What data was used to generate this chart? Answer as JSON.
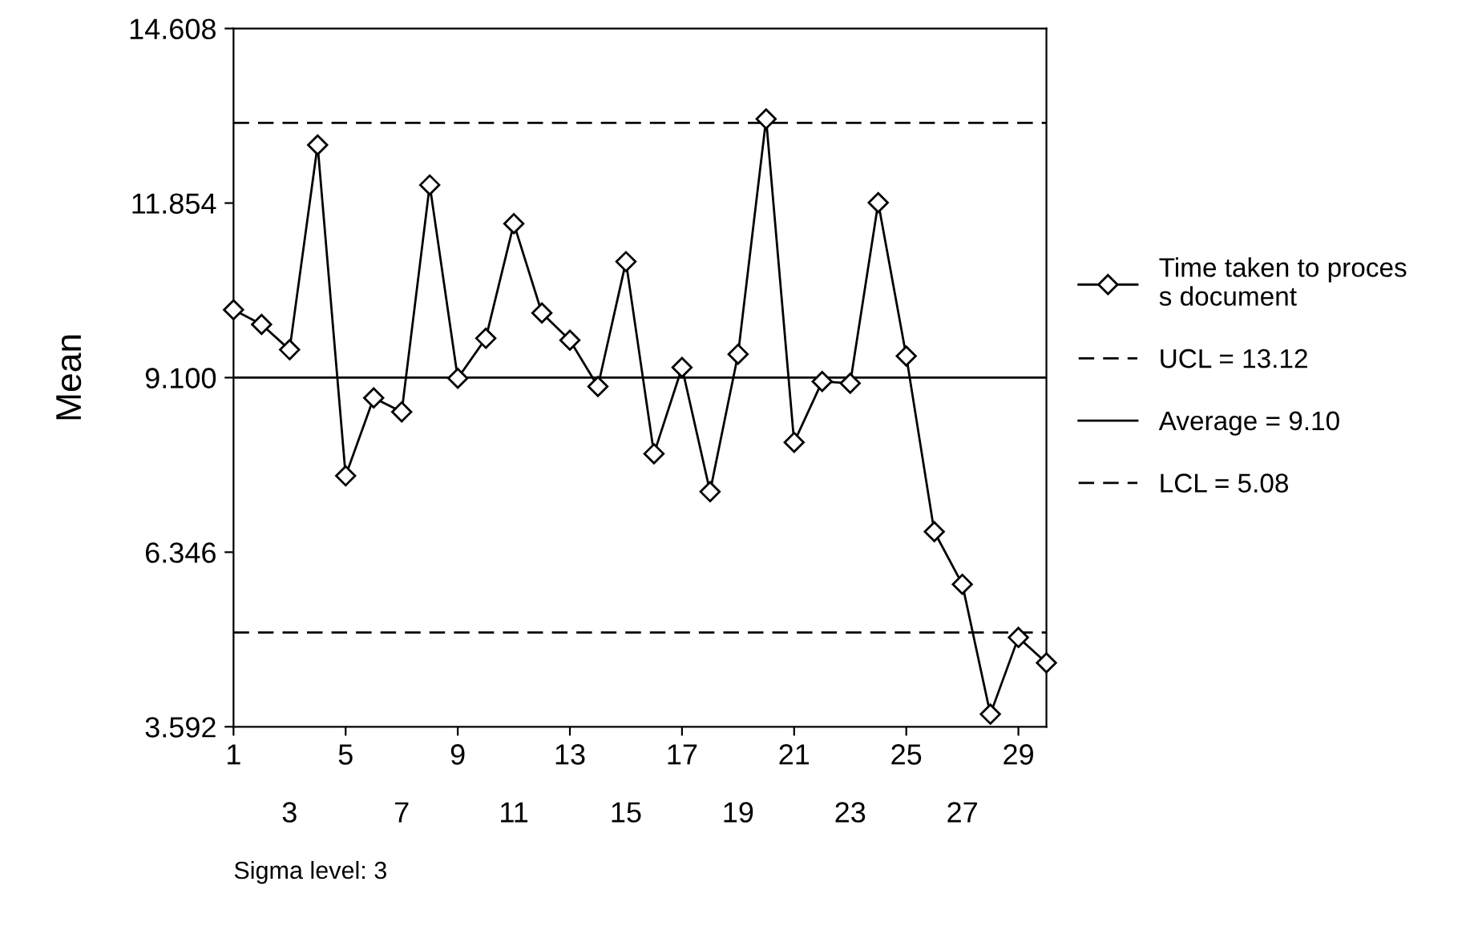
{
  "chart_data": {
    "type": "line",
    "ylabel": "Mean",
    "x": [
      1,
      2,
      3,
      4,
      5,
      6,
      7,
      8,
      9,
      10,
      11,
      12,
      13,
      14,
      15,
      16,
      17,
      18,
      19,
      20,
      21,
      22,
      23,
      24,
      25,
      26,
      27,
      28,
      29,
      30
    ],
    "series": [
      {
        "name": "Time taken to proces\ns document",
        "color": "#000000",
        "values": [
          10.17,
          9.94,
          9.54,
          12.77,
          7.55,
          8.78,
          8.56,
          12.14,
          9.09,
          9.72,
          11.53,
          10.12,
          9.69,
          8.96,
          10.93,
          7.9,
          9.26,
          7.3,
          9.47,
          13.18,
          8.08,
          9.04,
          9.01,
          11.86,
          9.44,
          6.67,
          5.84,
          3.79,
          5.0,
          4.6
        ]
      }
    ],
    "marker": "diamond",
    "line_style": "solid",
    "xlim": [
      1,
      30
    ],
    "xticks": [
      1,
      5,
      9,
      13,
      17,
      21,
      25,
      29
    ],
    "x2lim": [
      1,
      30
    ],
    "x2ticks": [
      3,
      7,
      11,
      15,
      19,
      23,
      27
    ],
    "ylim": [
      3.592,
      14.608
    ],
    "yticks": [
      {
        "value": 3.592,
        "label": "3.592"
      },
      {
        "value": 6.346,
        "label": "6.346"
      },
      {
        "value": 9.1,
        "label": "9.100"
      },
      {
        "value": 11.854,
        "label": "11.854"
      },
      {
        "value": 14.608,
        "label": "14.608"
      }
    ],
    "ref_lines": [
      {
        "axis": "y",
        "value": 13.12,
        "label": "UCL = 13.12",
        "line_style": "dashed",
        "color": "#000000"
      },
      {
        "axis": "y",
        "value": 9.1,
        "label": "Average = 9.10",
        "line_style": "solid",
        "color": "#000000"
      },
      {
        "axis": "y",
        "value": 5.08,
        "label": "LCL = 5.08",
        "line_style": "dashed",
        "color": "#000000"
      }
    ],
    "annotations": [
      "Sigma level: 3"
    ],
    "grid": false,
    "legend": "right"
  }
}
